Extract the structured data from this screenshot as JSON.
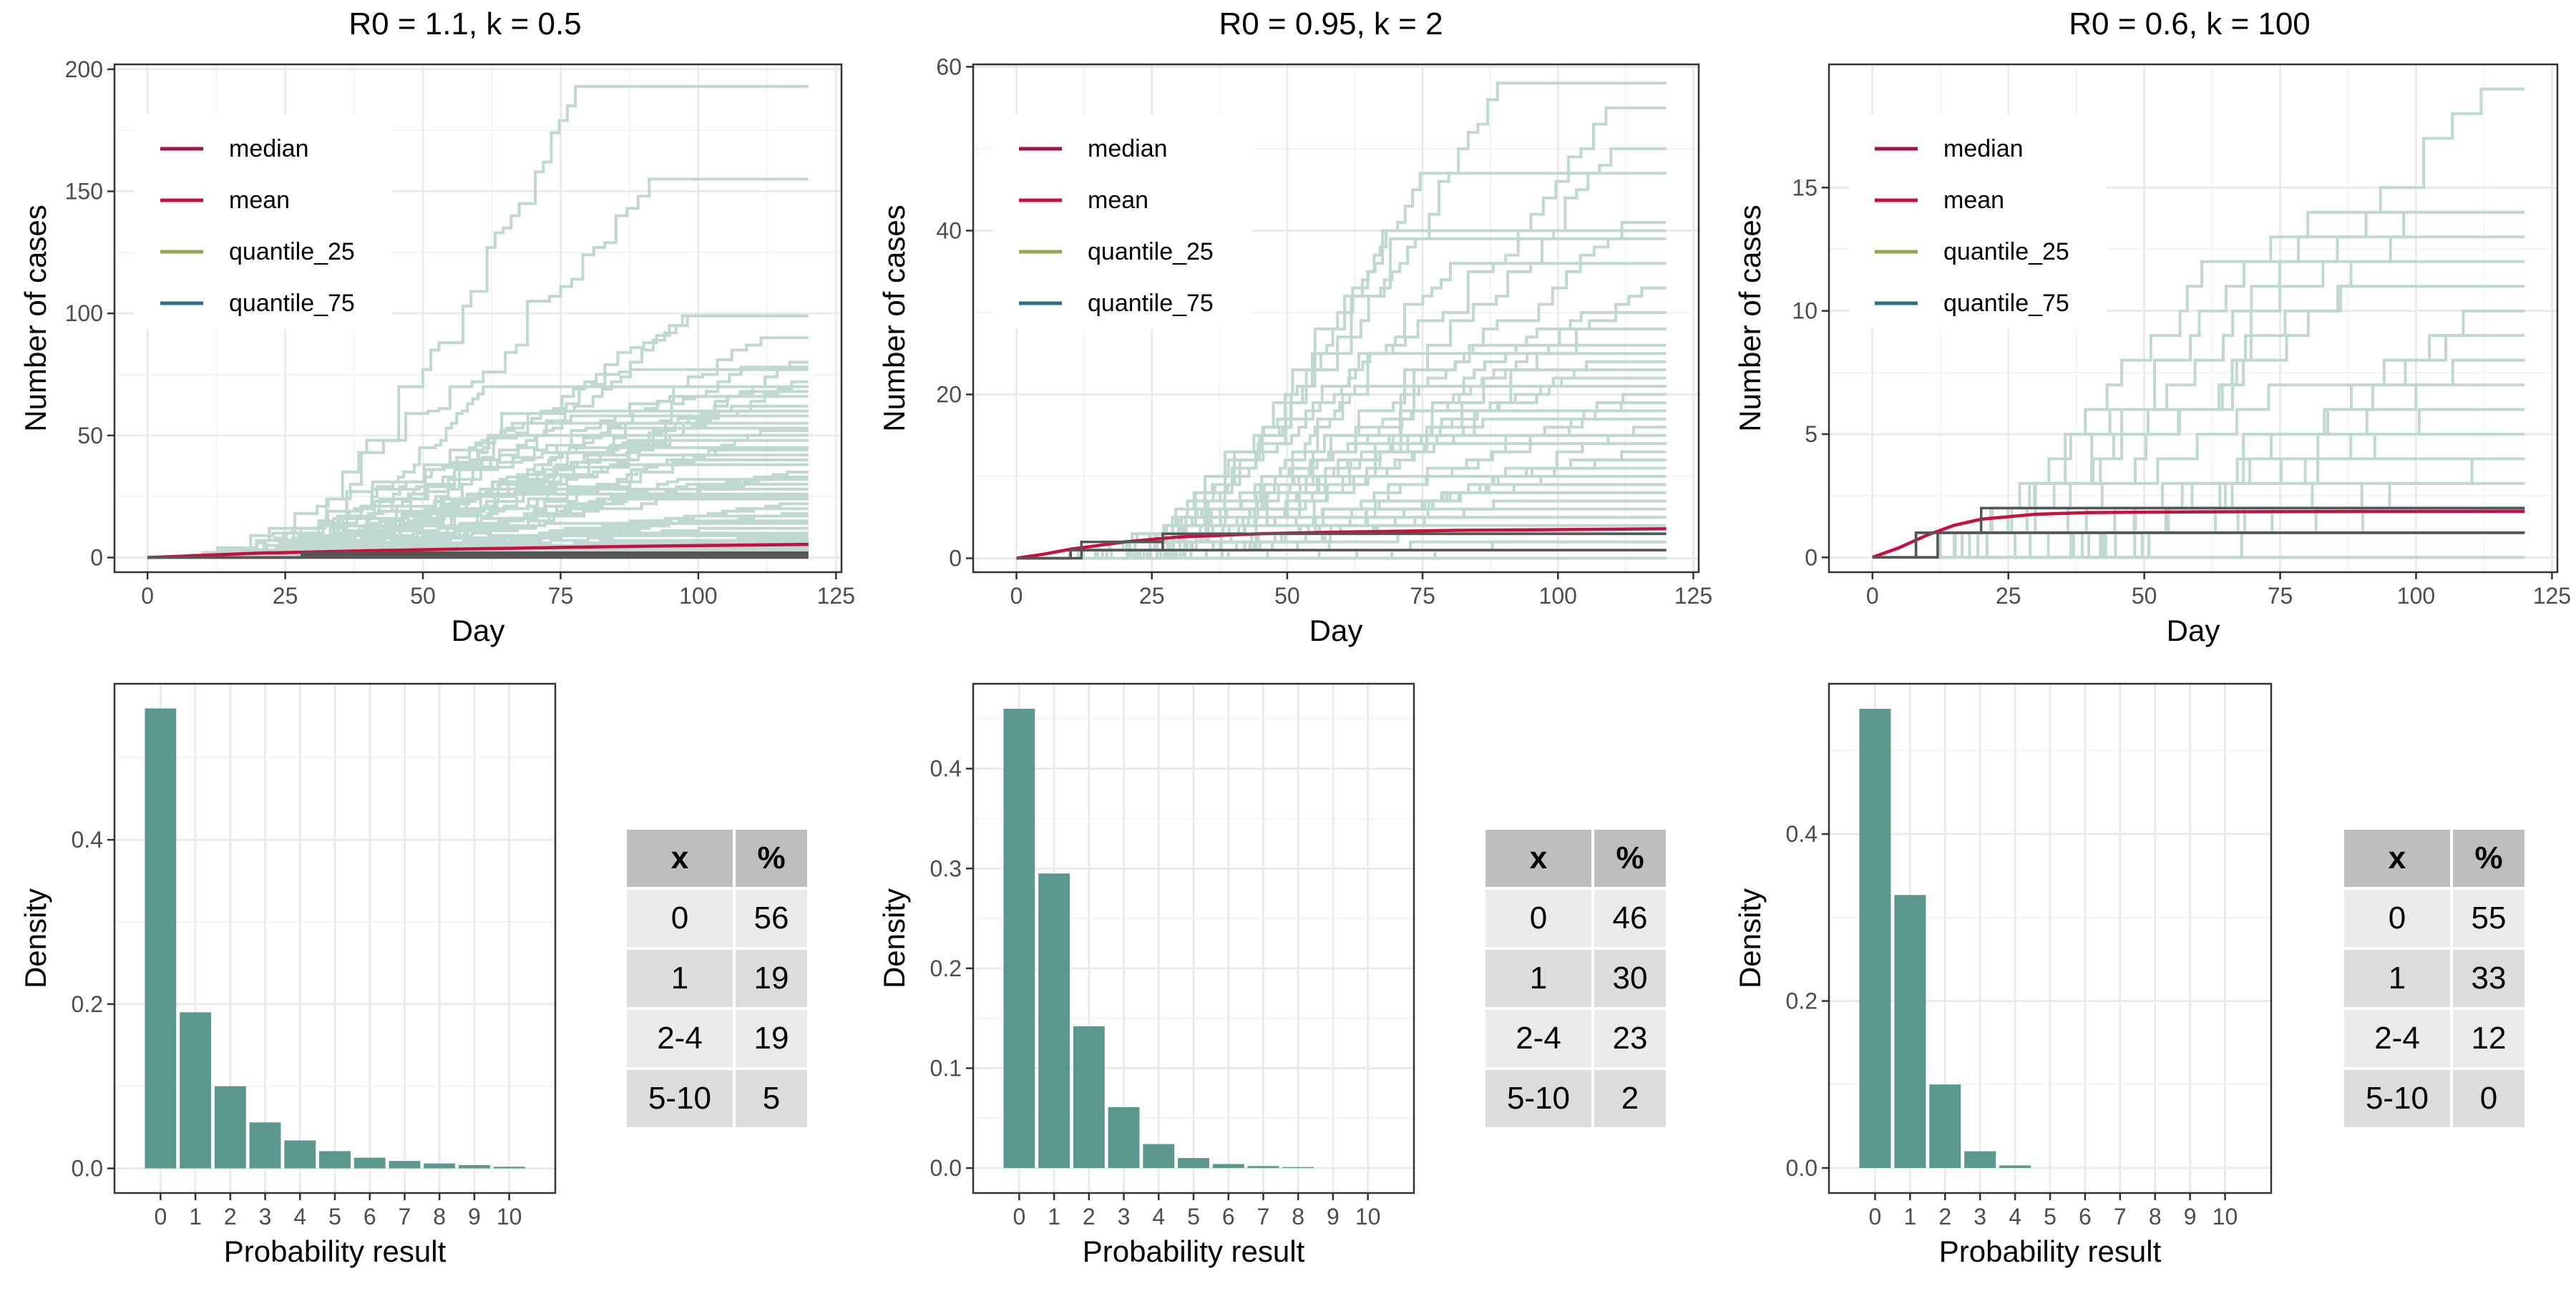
{
  "legend_items": [
    {
      "label": "median",
      "color": "#A3104A"
    },
    {
      "label": "mean",
      "color": "#C8103E"
    },
    {
      "label": "quantile_25",
      "color": "#8FA854"
    },
    {
      "label": "quantile_75",
      "color": "#2A6E8C"
    }
  ],
  "colors": {
    "sim_line": "#BFD8D2",
    "bar": "#5B978C",
    "table_header": "#BEBEBE",
    "table_row_light": "#EBEBEB",
    "table_row_dark": "#DCDCDC",
    "grid": "#EBEBEB",
    "quantile_line": "#555555"
  },
  "chart_data": [
    {
      "type": "line",
      "title": "R0 = 1.1, k = 0.5",
      "xlabel": "Day",
      "ylabel": "Number of cases",
      "xlim": [
        -6,
        126
      ],
      "ylim": [
        -6,
        202
      ],
      "xticks": [
        0,
        25,
        50,
        75,
        100,
        125
      ],
      "yticks": [
        0,
        50,
        100,
        150,
        200
      ],
      "legend_position": "top-left",
      "simulation_final_values": [
        193,
        155,
        99,
        99,
        90,
        80,
        78,
        77,
        72,
        70,
        68,
        66,
        62,
        60,
        58,
        55,
        53,
        52,
        50,
        48,
        45,
        44,
        42,
        40,
        38,
        35,
        33,
        32,
        30,
        28,
        26,
        25,
        24,
        22,
        20,
        18,
        17,
        15,
        14,
        12,
        10,
        9,
        8,
        7,
        6,
        5,
        4,
        3,
        3,
        2,
        2,
        1,
        1,
        1,
        1,
        0,
        0,
        0,
        0,
        0
      ],
      "series": [
        {
          "name": "median",
          "x": [
            0,
            28,
            120
          ],
          "y": [
            0,
            1,
            1
          ]
        },
        {
          "name": "mean",
          "x": [
            0,
            20,
            40,
            60,
            80,
            100,
            120
          ],
          "y": [
            0,
            1.8,
            2.8,
            3.6,
            4.3,
            4.9,
            5.4
          ]
        },
        {
          "name": "quantile_25",
          "x": [
            0,
            120
          ],
          "y": [
            0,
            0
          ]
        },
        {
          "name": "quantile_75",
          "x": [
            0,
            28,
            120
          ],
          "y": [
            0,
            2,
            2
          ]
        }
      ]
    },
    {
      "type": "line",
      "title": "R0 = 0.95, k = 2",
      "xlabel": "Day",
      "ylabel": "Number of cases",
      "xlim": [
        -8,
        126
      ],
      "ylim": [
        -1.7,
        60.3
      ],
      "xticks": [
        0,
        25,
        50,
        75,
        100,
        125
      ],
      "yticks": [
        0,
        20,
        40,
        60
      ],
      "legend_position": "top-left",
      "simulation_final_values": [
        58,
        55,
        50,
        47,
        41,
        40,
        39,
        36,
        33,
        30,
        28,
        26,
        25,
        24,
        23,
        22,
        21,
        20,
        19,
        18,
        17,
        16,
        15,
        14,
        13,
        12,
        11,
        10,
        9,
        8,
        7,
        6,
        5,
        4,
        3,
        3,
        2,
        2,
        1,
        1,
        1,
        1,
        0,
        0,
        0,
        0
      ],
      "series": [
        {
          "name": "median",
          "x": [
            0,
            10,
            27,
            120
          ],
          "y": [
            0,
            1,
            3,
            3
          ]
        },
        {
          "name": "mean",
          "x": [
            0,
            5,
            10,
            20,
            30,
            45,
            60,
            80,
            100,
            120
          ],
          "y": [
            0,
            0.5,
            1.1,
            2.0,
            2.6,
            3.0,
            3.2,
            3.4,
            3.5,
            3.6
          ]
        },
        {
          "name": "quantile_25",
          "x": [
            0,
            10,
            120
          ],
          "y": [
            0,
            1,
            1
          ]
        },
        {
          "name": "quantile_75",
          "x": [
            0,
            12,
            27,
            120
          ],
          "y": [
            0,
            2,
            3,
            3
          ]
        }
      ]
    },
    {
      "type": "line",
      "title": "R0 = 0.6, k = 100",
      "xlabel": "Day",
      "ylabel": "Number of cases",
      "xlim": [
        -8,
        126
      ],
      "ylim": [
        -0.6,
        20.0
      ],
      "xticks": [
        0,
        25,
        50,
        75,
        100,
        125
      ],
      "yticks": [
        0,
        5,
        10,
        15
      ],
      "legend_position": "top-left",
      "simulation_final_values": [
        19,
        14,
        14,
        13,
        12,
        11,
        10,
        9,
        8,
        7,
        6,
        5,
        4,
        4,
        3,
        3,
        2,
        2,
        2,
        1,
        1,
        1,
        1,
        0,
        0,
        0
      ],
      "series": [
        {
          "name": "median",
          "x": [
            0,
            8,
            120
          ],
          "y": [
            0,
            1,
            1
          ]
        },
        {
          "name": "mean",
          "x": [
            0,
            5,
            10,
            15,
            20,
            30,
            40,
            60,
            80,
            120
          ],
          "y": [
            0,
            0.4,
            0.9,
            1.3,
            1.55,
            1.75,
            1.82,
            1.85,
            1.86,
            1.87
          ]
        },
        {
          "name": "quantile_25",
          "x": [
            0,
            12,
            120
          ],
          "y": [
            0,
            1,
            1
          ]
        },
        {
          "name": "quantile_75",
          "x": [
            0,
            8,
            20,
            120
          ],
          "y": [
            0,
            1,
            2,
            2
          ]
        }
      ]
    },
    {
      "type": "bar",
      "xlabel": "Probability result",
      "ylabel": "Density",
      "categories": [
        "0",
        "1",
        "2",
        "3",
        "4",
        "5",
        "6",
        "7",
        "8",
        "9",
        "10"
      ],
      "values": [
        0.56,
        0.19,
        0.1,
        0.056,
        0.034,
        0.021,
        0.013,
        0.009,
        0.006,
        0.004,
        0.002
      ],
      "ylim": [
        -0.03,
        0.59
      ],
      "yticks": [
        0.0,
        0.2,
        0.4
      ],
      "ytick_labels": [
        "0.0",
        "0.2",
        "0.4"
      ]
    },
    {
      "type": "bar",
      "xlabel": "Probability result",
      "ylabel": "Density",
      "categories": [
        "0",
        "1",
        "2",
        "3",
        "4",
        "5",
        "6",
        "7",
        "8",
        "9",
        "10"
      ],
      "values": [
        0.46,
        0.295,
        0.142,
        0.061,
        0.024,
        0.01,
        0.004,
        0.002,
        0.001,
        0.0,
        0.0
      ],
      "ylim": [
        -0.025,
        0.485
      ],
      "yticks": [
        0.0,
        0.1,
        0.2,
        0.3,
        0.4
      ],
      "ytick_labels": [
        "0.0",
        "0.1",
        "0.2",
        "0.3",
        "0.4"
      ]
    },
    {
      "type": "bar",
      "xlabel": "Probability result",
      "ylabel": "Density",
      "categories": [
        "0",
        "1",
        "2",
        "3",
        "4",
        "5",
        "6",
        "7",
        "8",
        "9",
        "10"
      ],
      "values": [
        0.55,
        0.327,
        0.1,
        0.02,
        0.003,
        0.0,
        0.0,
        0.0,
        0.0,
        0.0,
        0.0
      ],
      "ylim": [
        -0.03,
        0.58
      ],
      "yticks": [
        0.0,
        0.2,
        0.4
      ],
      "ytick_labels": [
        "0.0",
        "0.2",
        "0.4"
      ]
    },
    {
      "type": "table",
      "columns": [
        "x",
        "%"
      ],
      "rows": [
        [
          "0",
          "56"
        ],
        [
          "1",
          "19"
        ],
        [
          "2-4",
          "19"
        ],
        [
          "5-10",
          "5"
        ]
      ]
    },
    {
      "type": "table",
      "columns": [
        "x",
        "%"
      ],
      "rows": [
        [
          "0",
          "46"
        ],
        [
          "1",
          "30"
        ],
        [
          "2-4",
          "23"
        ],
        [
          "5-10",
          "2"
        ]
      ]
    },
    {
      "type": "table",
      "columns": [
        "x",
        "%"
      ],
      "rows": [
        [
          "0",
          "55"
        ],
        [
          "1",
          "33"
        ],
        [
          "2-4",
          "12"
        ],
        [
          "5-10",
          "0"
        ]
      ]
    }
  ]
}
